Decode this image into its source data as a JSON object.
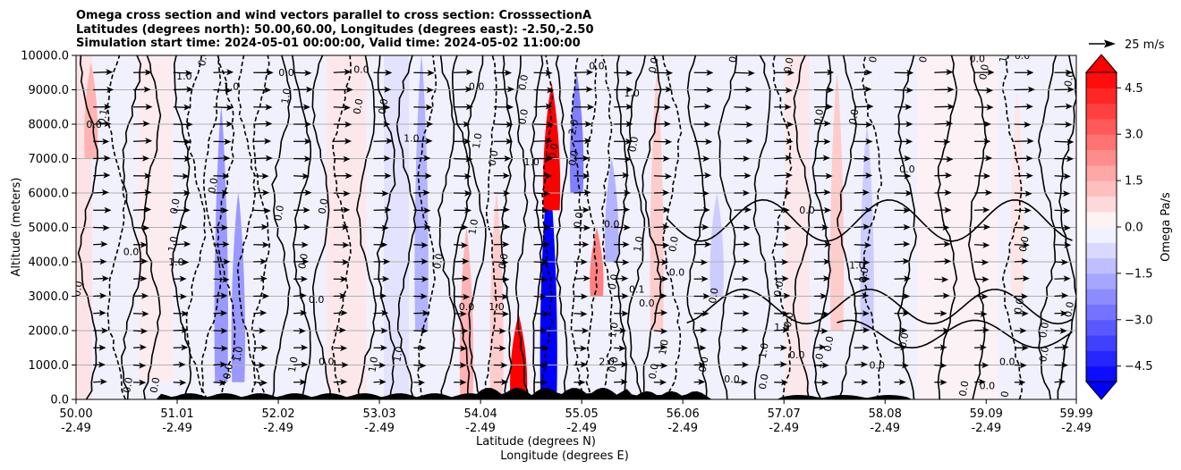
{
  "chart_data": {
    "type": "heatmap",
    "title_lines": [
      "Omega cross section and wind vectors parallel to cross section: CrosssectionA",
      "Latitudes (degrees north): 50.00,60.00, Longitudes (degrees east): -2.50,-2.50",
      "Simulation start time: 2024-05-01 00:00:00, Valid time: 2024-05-02 11:00:00"
    ],
    "xlabel_lines": [
      "Latitude (degrees N)",
      "Longitude (degrees E)"
    ],
    "ylabel": "Altitude (meters)",
    "xlim": [
      50.0,
      59.99
    ],
    "ylim": [
      0,
      10000
    ],
    "x_ticks": [
      {
        "lat": "50.00",
        "lon": "-2.49",
        "value": 50.0
      },
      {
        "lat": "51.01",
        "lon": "-2.49",
        "value": 51.01
      },
      {
        "lat": "52.02",
        "lon": "-2.49",
        "value": 52.02
      },
      {
        "lat": "53.03",
        "lon": "-2.49",
        "value": 53.03
      },
      {
        "lat": "54.04",
        "lon": "-2.49",
        "value": 54.04
      },
      {
        "lat": "55.05",
        "lon": "-2.49",
        "value": 55.05
      },
      {
        "lat": "56.06",
        "lon": "-2.49",
        "value": 56.06
      },
      {
        "lat": "57.07",
        "lon": "-2.49",
        "value": 57.07
      },
      {
        "lat": "58.08",
        "lon": "-2.49",
        "value": 58.08
      },
      {
        "lat": "59.09",
        "lon": "-2.49",
        "value": 59.09
      },
      {
        "lat": "59.99",
        "lon": "-2.49",
        "value": 59.99
      }
    ],
    "y_ticks": [
      {
        "label": "0.0",
        "value": 0
      },
      {
        "label": "1000.0",
        "value": 1000
      },
      {
        "label": "2000.0",
        "value": 2000
      },
      {
        "label": "3000.0",
        "value": 3000
      },
      {
        "label": "4000.0",
        "value": 4000
      },
      {
        "label": "5000.0",
        "value": 5000
      },
      {
        "label": "6000.0",
        "value": 6000
      },
      {
        "label": "7000.0",
        "value": 7000
      },
      {
        "label": "8000.0",
        "value": 8000
      },
      {
        "label": "9000.0",
        "value": 9000
      },
      {
        "label": "10000.0",
        "value": 10000
      }
    ],
    "grid": "horizontal",
    "colorbar": {
      "label": "Omega Pa/s",
      "min": -5.0,
      "max": 5.0,
      "step": 0.5,
      "extend": "both",
      "colormap": "bwr",
      "ticks": [
        {
          "label": "4.5",
          "value": 4.5
        },
        {
          "label": "3.0",
          "value": 3.0
        },
        {
          "label": "1.5",
          "value": 1.5
        },
        {
          "label": "0.0",
          "value": 0.0
        },
        {
          "label": "−1.5",
          "value": -1.5
        },
        {
          "label": "−3.0",
          "value": -3.0
        },
        {
          "label": "−4.5",
          "value": -4.5
        }
      ]
    },
    "quiver_key": {
      "label": "25 m/s",
      "value": 25
    },
    "omega_features": [
      {
        "lat": 50.15,
        "z_top": 9800,
        "z_bot": 7000,
        "value": 1.5
      },
      {
        "lat": 51.45,
        "z_top": 8500,
        "z_bot": 500,
        "value": -2.0
      },
      {
        "lat": 51.62,
        "z_top": 6000,
        "z_bot": 500,
        "value": -2.0
      },
      {
        "lat": 53.45,
        "z_top": 10000,
        "z_bot": 2000,
        "value": -1.5
      },
      {
        "lat": 53.9,
        "z_top": 5000,
        "z_bot": 0,
        "value": 1.5
      },
      {
        "lat": 54.2,
        "z_top": 6000,
        "z_bot": 0,
        "value": 1.0
      },
      {
        "lat": 54.42,
        "z_top": 2500,
        "z_bot": 0,
        "value": 5.0
      },
      {
        "lat": 54.72,
        "z_top": 6800,
        "z_bot": 0,
        "value": -5.0
      },
      {
        "lat": 54.75,
        "z_top": 9200,
        "z_bot": 5500,
        "value": 5.0
      },
      {
        "lat": 55.0,
        "z_top": 9500,
        "z_bot": 6000,
        "value": -2.5
      },
      {
        "lat": 55.2,
        "z_top": 5000,
        "z_bot": 3000,
        "value": 2.5
      },
      {
        "lat": 55.35,
        "z_top": 7000,
        "z_bot": 4000,
        "value": -1.5
      },
      {
        "lat": 55.8,
        "z_top": 9500,
        "z_bot": 2000,
        "value": 1.0
      },
      {
        "lat": 56.4,
        "z_top": 6000,
        "z_bot": 3000,
        "value": -1.0
      },
      {
        "lat": 57.6,
        "z_top": 9500,
        "z_bot": 2000,
        "value": 1.0
      },
      {
        "lat": 57.9,
        "z_top": 8000,
        "z_bot": 2000,
        "value": -1.0
      },
      {
        "lat": 59.4,
        "z_top": 9000,
        "z_bot": 3000,
        "value": 0.5
      }
    ],
    "contour_labels": [
      {
        "text": "0.0",
        "lat": 50.18,
        "z": 7900
      },
      {
        "text": "0.1",
        "lat": 50.3,
        "z": 8200
      },
      {
        "text": "0.0",
        "lat": 50.05,
        "z": 3200
      },
      {
        "text": "0.0",
        "lat": 50.55,
        "z": 4200
      },
      {
        "text": "0.0",
        "lat": 50.55,
        "z": 400
      },
      {
        "text": "0.0",
        "lat": 50.82,
        "z": 400
      },
      {
        "text": "1.0",
        "lat": 51.08,
        "z": 9300
      },
      {
        "text": "0.0",
        "lat": 51.3,
        "z": 9900
      },
      {
        "text": "1.0",
        "lat": 51.0,
        "z": 4500
      },
      {
        "text": "1.0",
        "lat": 51.0,
        "z": 3900
      },
      {
        "text": "0.0",
        "lat": 51.02,
        "z": 5600
      },
      {
        "text": "0.0",
        "lat": 51.4,
        "z": 6200
      },
      {
        "text": "1.0",
        "lat": 51.55,
        "z": 9000
      },
      {
        "text": "1.0",
        "lat": 51.65,
        "z": 1300
      },
      {
        "text": "0.0",
        "lat": 51.55,
        "z": 800
      },
      {
        "text": "0.0",
        "lat": 52.1,
        "z": 9400
      },
      {
        "text": "1.0",
        "lat": 52.13,
        "z": 8800
      },
      {
        "text": "0.0",
        "lat": 52.3,
        "z": 4000
      },
      {
        "text": "0.0",
        "lat": 52.4,
        "z": 2800
      },
      {
        "text": "0.0",
        "lat": 52.06,
        "z": 5400
      },
      {
        "text": "0.0",
        "lat": 52.5,
        "z": 5600
      },
      {
        "text": "0.0",
        "lat": 52.85,
        "z": 9500
      },
      {
        "text": "0.0",
        "lat": 52.85,
        "z": 8500
      },
      {
        "text": "1.0",
        "lat": 52.2,
        "z": 1000
      },
      {
        "text": "0.0",
        "lat": 52.5,
        "z": 1000
      },
      {
        "text": "1.0",
        "lat": 53.0,
        "z": 1000
      },
      {
        "text": "0.0",
        "lat": 53.1,
        "z": 8500
      },
      {
        "text": "1.0",
        "lat": 53.35,
        "z": 7500
      },
      {
        "text": "1.0",
        "lat": 53.25,
        "z": 1300
      },
      {
        "text": "0.0",
        "lat": 53.65,
        "z": 4000
      },
      {
        "text": "0.0",
        "lat": 54.0,
        "z": 9000
      },
      {
        "text": "1.0",
        "lat": 54.04,
        "z": 7500
      },
      {
        "text": "1.0",
        "lat": 54.0,
        "z": 5000
      },
      {
        "text": "0.0",
        "lat": 53.9,
        "z": 2600
      },
      {
        "text": "0.0",
        "lat": 54.2,
        "z": 7000
      },
      {
        "text": "0.0",
        "lat": 54.3,
        "z": 4000
      },
      {
        "text": "1.0",
        "lat": 54.2,
        "z": 2600
      },
      {
        "text": "0.0",
        "lat": 54.5,
        "z": 9200
      },
      {
        "text": "0.0",
        "lat": 54.5,
        "z": 8200
      },
      {
        "text": "1.0",
        "lat": 54.55,
        "z": 6800
      },
      {
        "text": "0.0",
        "lat": 54.8,
        "z": 7200
      },
      {
        "text": "0.0",
        "lat": 55.0,
        "z": 7000
      },
      {
        "text": "0.0",
        "lat": 55.2,
        "z": 9600
      },
      {
        "text": "2.0",
        "lat": 55.0,
        "z": 7900
      },
      {
        "text": "0.0",
        "lat": 55.05,
        "z": 5200
      },
      {
        "text": "0.0",
        "lat": 55.35,
        "z": 5000
      },
      {
        "text": "0.0",
        "lat": 55.4,
        "z": 3400
      },
      {
        "text": "0.0",
        "lat": 55.8,
        "z": 9700
      },
      {
        "text": "1.0",
        "lat": 55.55,
        "z": 8800
      },
      {
        "text": "0.0",
        "lat": 55.6,
        "z": 7400
      },
      {
        "text": "0.0",
        "lat": 55.4,
        "z": 1000
      },
      {
        "text": "2.0",
        "lat": 55.3,
        "z": 1000
      },
      {
        "text": "1.0",
        "lat": 55.4,
        "z": 2000
      },
      {
        "text": "1.0",
        "lat": 55.65,
        "z": 4500
      },
      {
        "text": "0.0",
        "lat": 55.7,
        "z": 2700
      },
      {
        "text": "0.0",
        "lat": 55.8,
        "z": 800
      },
      {
        "text": "1.0",
        "lat": 55.9,
        "z": 1500
      },
      {
        "text": "0.1",
        "lat": 55.6,
        "z": 3100
      },
      {
        "text": "0.0",
        "lat": 56.6,
        "z": 10000
      },
      {
        "text": "0.0",
        "lat": 56.0,
        "z": 4500
      },
      {
        "text": "0.0",
        "lat": 56.0,
        "z": 3600
      },
      {
        "text": "0.0",
        "lat": 56.4,
        "z": 3000
      },
      {
        "text": "0.0",
        "lat": 56.3,
        "z": 1000
      },
      {
        "text": "0.0",
        "lat": 56.55,
        "z": 500
      },
      {
        "text": "0.0",
        "lat": 56.9,
        "z": 500
      },
      {
        "text": "1.0",
        "lat": 56.9,
        "z": 1400
      },
      {
        "text": "1.0",
        "lat": 57.05,
        "z": 2000
      },
      {
        "text": "0.0",
        "lat": 57.05,
        "z": 3200
      },
      {
        "text": "0.0",
        "lat": 57.15,
        "z": 9700
      },
      {
        "text": "0.0",
        "lat": 57.3,
        "z": 5400
      },
      {
        "text": "0.0",
        "lat": 57.45,
        "z": 8200
      },
      {
        "text": "0.0",
        "lat": 57.15,
        "z": 2300
      },
      {
        "text": "0.0",
        "lat": 57.2,
        "z": 1200
      },
      {
        "text": "1.0",
        "lat": 57.45,
        "z": 1100
      },
      {
        "text": "0.0",
        "lat": 57.55,
        "z": 1600
      },
      {
        "text": "1.0",
        "lat": 57.8,
        "z": 3800
      },
      {
        "text": "0.0",
        "lat": 57.9,
        "z": 3600
      },
      {
        "text": "0.0",
        "lat": 57.8,
        "z": 8200
      },
      {
        "text": "0.0",
        "lat": 58.3,
        "z": 6600
      },
      {
        "text": "0.0",
        "lat": 58.0,
        "z": 10000
      },
      {
        "text": "0.0",
        "lat": 58.5,
        "z": 10000
      },
      {
        "text": "0.0",
        "lat": 58.0,
        "z": 900
      },
      {
        "text": "0.0",
        "lat": 58.3,
        "z": 1700
      },
      {
        "text": "0.0",
        "lat": 58.9,
        "z": 300
      },
      {
        "text": "0.0",
        "lat": 59.0,
        "z": 9800
      },
      {
        "text": "0.0",
        "lat": 59.1,
        "z": 9500
      },
      {
        "text": "1.0",
        "lat": 59.3,
        "z": 10000
      },
      {
        "text": "0.0",
        "lat": 59.45,
        "z": 9900
      },
      {
        "text": "0.0",
        "lat": 59.5,
        "z": 4500
      },
      {
        "text": "0.0",
        "lat": 59.45,
        "z": 2700
      },
      {
        "text": "0.0",
        "lat": 59.3,
        "z": 1000
      },
      {
        "text": "0.0",
        "lat": 59.7,
        "z": 2000
      },
      {
        "text": "0.0",
        "lat": 59.7,
        "z": 1300
      },
      {
        "text": "0.0",
        "lat": 59.85,
        "z": 10000
      },
      {
        "text": "0.0",
        "lat": 59.95,
        "z": 9300
      },
      {
        "text": "0.0",
        "lat": 59.95,
        "z": 2600
      },
      {
        "text": "0.0",
        "lat": 59.1,
        "z": 300
      },
      {
        "text": "0.0",
        "lat": 59.3,
        "z": 0
      }
    ]
  }
}
